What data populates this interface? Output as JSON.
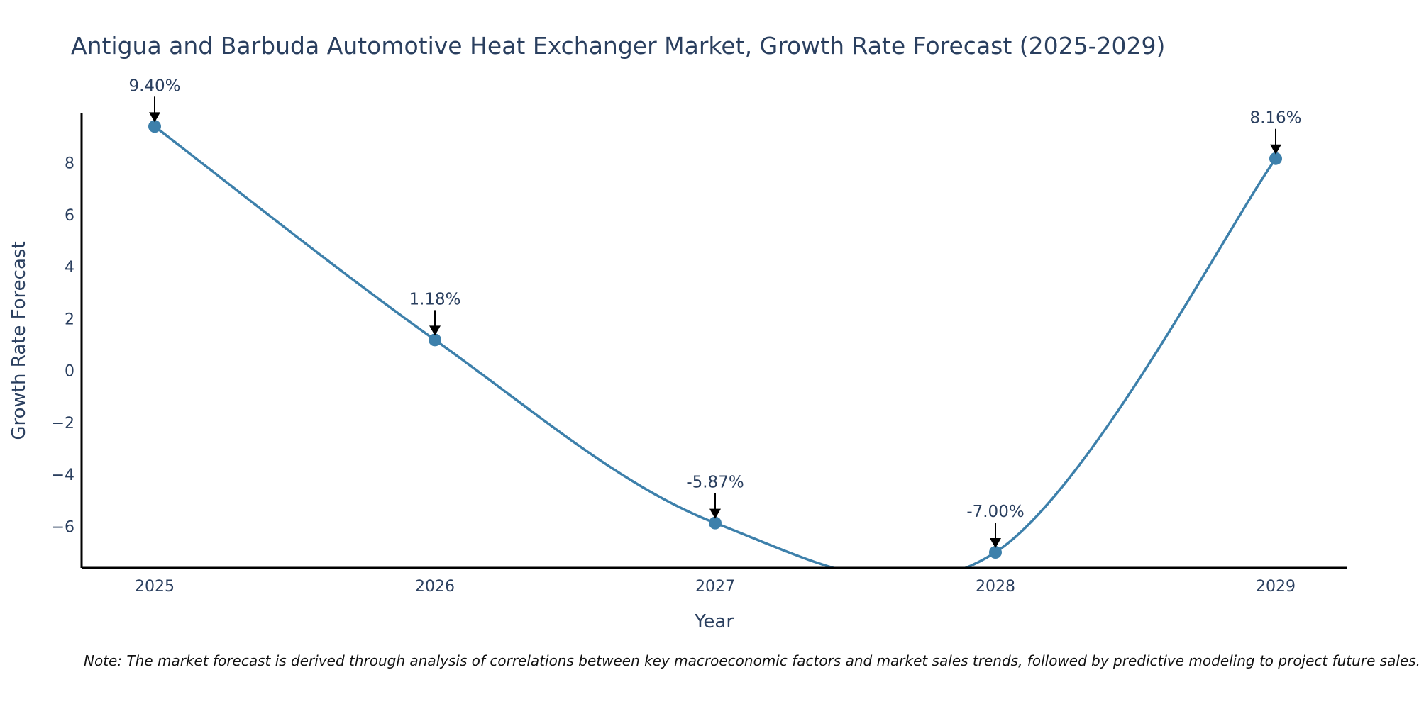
{
  "chart_data": {
    "type": "line",
    "title": "Antigua and Barbuda Automotive Heat Exchanger Market, Growth Rate Forecast (2025-2029)",
    "xlabel": "Year",
    "ylabel": "Growth Rate Forecast",
    "categories": [
      "2025",
      "2026",
      "2027",
      "2028",
      "2029"
    ],
    "series": [
      {
        "name": "Growth Rate Forecast",
        "values": [
          9.4,
          1.18,
          -5.87,
          -7.0,
          8.16
        ]
      }
    ],
    "data_labels": [
      "9.40%",
      "1.18%",
      "-5.87%",
      "-7.00%",
      "8.16%"
    ],
    "ylim": [
      -7.6,
      9.9
    ],
    "yticks": [
      -6,
      -4,
      -2,
      0,
      2,
      4,
      6,
      8
    ],
    "ytick_labels": [
      "−6",
      "−4",
      "−2",
      "0",
      "2",
      "4",
      "6",
      "8"
    ],
    "grid": false,
    "line_shape": "spline",
    "note": "Note: The market forecast is derived through analysis of correlations between key macroeconomic factors and market sales trends, followed by predictive modeling to project future sales."
  },
  "colors": {
    "line": "#3d80ab",
    "marker": "#3d80ab",
    "axis": "#000000",
    "text": "#2a3f5f",
    "arrow": "#000000"
  }
}
